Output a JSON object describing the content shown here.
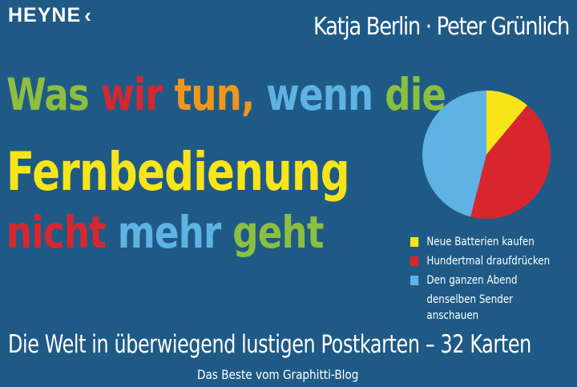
{
  "publisher": {
    "name": "HEYNE",
    "logo_icon": "chevron-left-icon"
  },
  "authors": "Katja Berlin · Peter Grünlich",
  "title": {
    "line1": [
      {
        "text": "Was ",
        "color": "#8cbf3f"
      },
      {
        "text": "wir ",
        "color": "#d9262e"
      },
      {
        "text": "tun, ",
        "color": "#f0961c"
      },
      {
        "text": "wenn ",
        "color": "#5eb3e4"
      },
      {
        "text": "die",
        "color": "#8cbf3f"
      }
    ],
    "line2": "Fernbedienung",
    "line3": [
      {
        "text": "nicht ",
        "color": "#d9262e"
      },
      {
        "text": "mehr ",
        "color": "#5eb3e4"
      },
      {
        "text": "geht",
        "color": "#8cbf3f"
      }
    ]
  },
  "chart_data": {
    "type": "pie",
    "slices": [
      {
        "label": "Neue Batterien kaufen",
        "value": 11,
        "color": "#f7e51a"
      },
      {
        "label": "Hundertmal draufdrücken",
        "value": 43,
        "color": "#d9262e"
      },
      {
        "label": "Den ganzen Abend denselben Sender anschauen",
        "value": 46,
        "color": "#5eb3e4"
      }
    ],
    "legend_position": "bottom",
    "legend": [
      {
        "lines": [
          "Neue Batterien kaufen"
        ],
        "color": "#f7e51a"
      },
      {
        "lines": [
          "Hundertmal draufdrücken"
        ],
        "color": "#d9262e"
      },
      {
        "lines": [
          "Den ganzen Abend",
          "denselben Sender anschauen"
        ],
        "color": "#5eb3e4"
      }
    ]
  },
  "subtitle": "Die Welt in überwiegend lustigen Postkarten – 32 Karten",
  "blog": "Das Beste vom Graphitti-Blog",
  "colors": {
    "background": "#1f5a86"
  }
}
